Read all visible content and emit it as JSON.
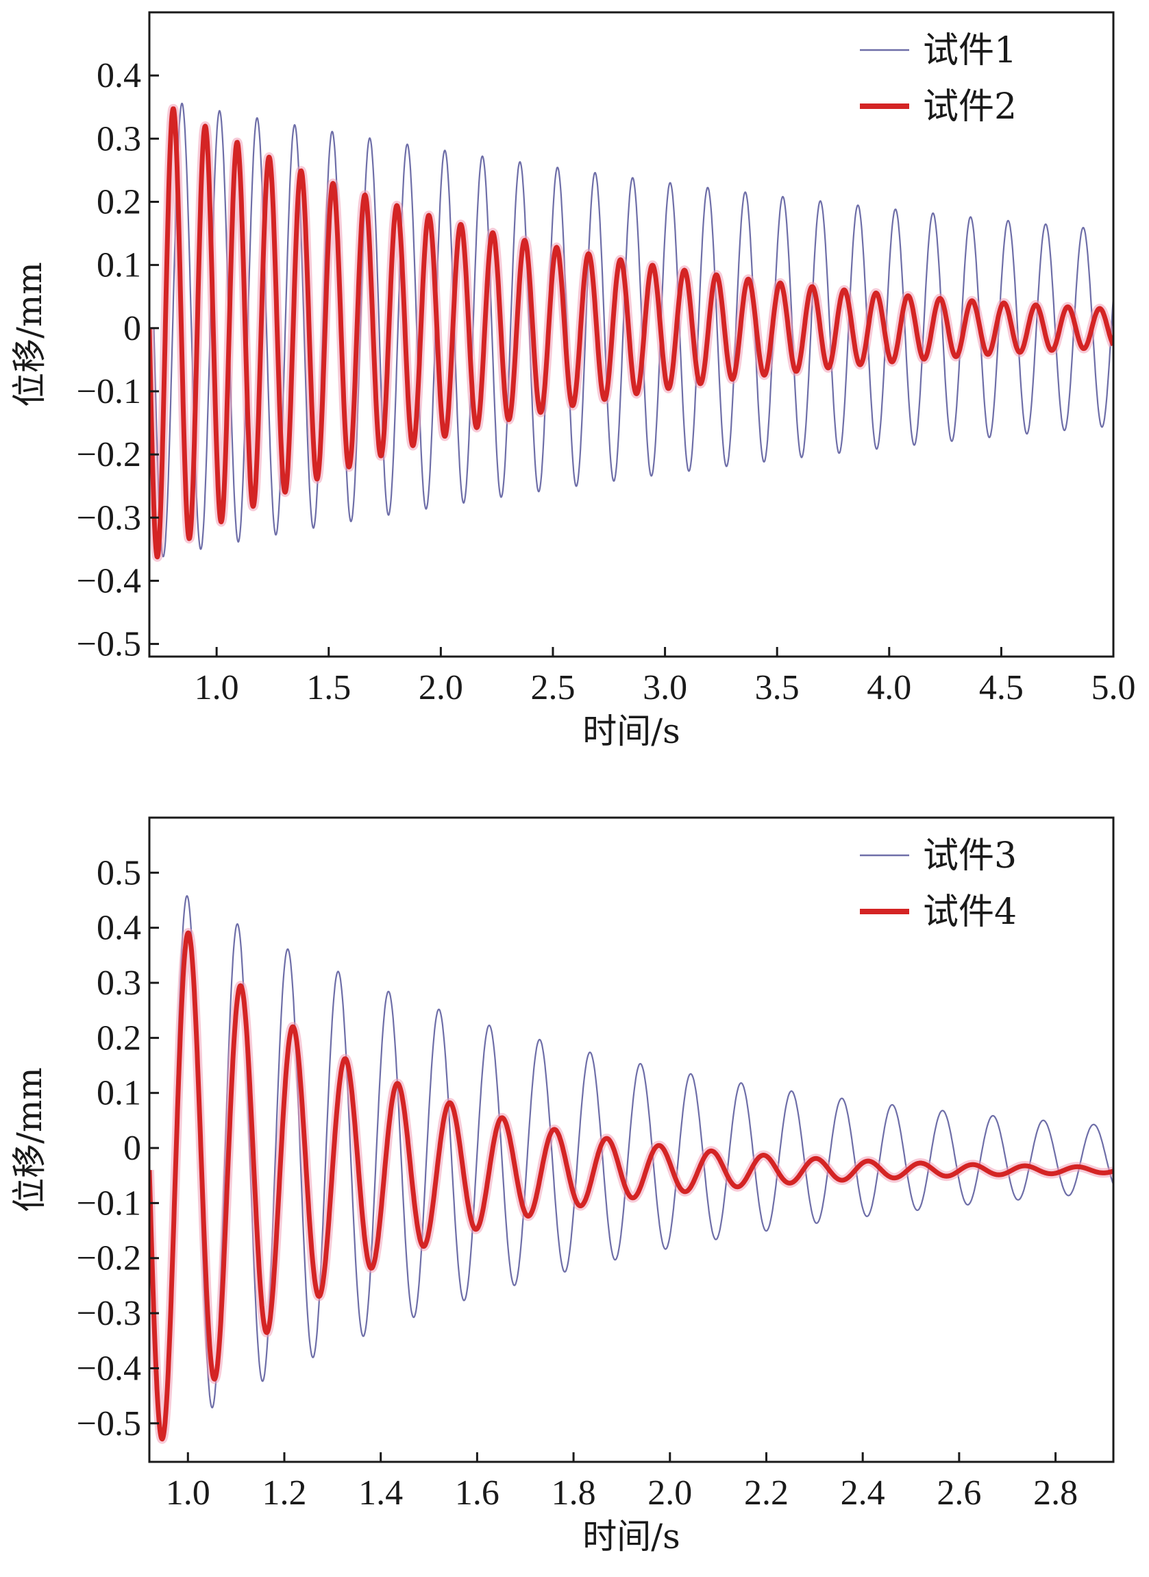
{
  "chart_data": [
    {
      "type": "line",
      "xlabel": "时间/s",
      "ylabel": "位移/mm",
      "xlim": [
        0.7,
        5.0
      ],
      "ylim": [
        -0.52,
        0.5
      ],
      "xticks": [
        1.0,
        1.5,
        2.0,
        2.5,
        3.0,
        3.5,
        4.0,
        4.5,
        5.0
      ],
      "xtick_labels": [
        "1.0",
        "1.5",
        "2.0",
        "2.5",
        "3.0",
        "3.5",
        "4.0",
        "4.5",
        "5.0"
      ],
      "yticks": [
        0.4,
        0.3,
        0.2,
        0.1,
        0,
        -0.1,
        -0.2,
        -0.3,
        -0.4,
        -0.5
      ],
      "ytick_labels": [
        "0.4",
        "0.3",
        "0.2",
        "0.1",
        "0",
        "−0.1",
        "−0.2",
        "−0.3",
        "−0.4",
        "−0.5"
      ],
      "grid": false,
      "legend_position": "top-right",
      "series": [
        {
          "name": "试件1",
          "color": "#6e6ea8",
          "x_start": 0.72,
          "x_end": 5.0,
          "amplitude_start": 0.365,
          "amplitude_end": 0.155,
          "period": 0.1675,
          "offset": 0.0
        },
        {
          "name": "试件2",
          "color": "#d42424",
          "x_start": 0.7,
          "x_end": 5.0,
          "amplitude_start": 0.37,
          "amplitude_end": 0.03,
          "period": 0.1425,
          "offset": 0.0
        }
      ]
    },
    {
      "type": "line",
      "xlabel": "时间/s",
      "ylabel": "位移/mm",
      "xlim": [
        0.92,
        2.92
      ],
      "ylim": [
        -0.57,
        0.6
      ],
      "xticks": [
        1.0,
        1.2,
        1.4,
        1.6,
        1.8,
        2.0,
        2.2,
        2.4,
        2.6,
        2.8
      ],
      "xtick_labels": [
        "1.0",
        "1.2",
        "1.4",
        "1.6",
        "1.8",
        "2.0",
        "2.2",
        "2.4",
        "2.6",
        "2.8"
      ],
      "yticks": [
        0.5,
        0.4,
        0.3,
        0.2,
        0.1,
        0,
        -0.1,
        -0.2,
        -0.3,
        -0.4,
        -0.5
      ],
      "ytick_labels": [
        "0.5",
        "0.4",
        "0.3",
        "0.2",
        "0.1",
        "0",
        "−0.1",
        "−0.2",
        "−0.3",
        "−0.4",
        "−0.5"
      ],
      "grid": false,
      "legend_position": "top-right",
      "series": [
        {
          "name": "试件3",
          "color": "#6e6ea8",
          "x_start": 0.92,
          "x_end": 2.92,
          "amplitude_start": 0.52,
          "amplitude_end": 0.06,
          "period": 0.1045,
          "offset": -0.02
        },
        {
          "name": "试件4",
          "color": "#d42424",
          "x_start": 0.92,
          "x_end": 2.92,
          "amplitude_start": 0.52,
          "amplitude_end": 0.005,
          "period": 0.1085,
          "offset": -0.04
        }
      ]
    }
  ]
}
